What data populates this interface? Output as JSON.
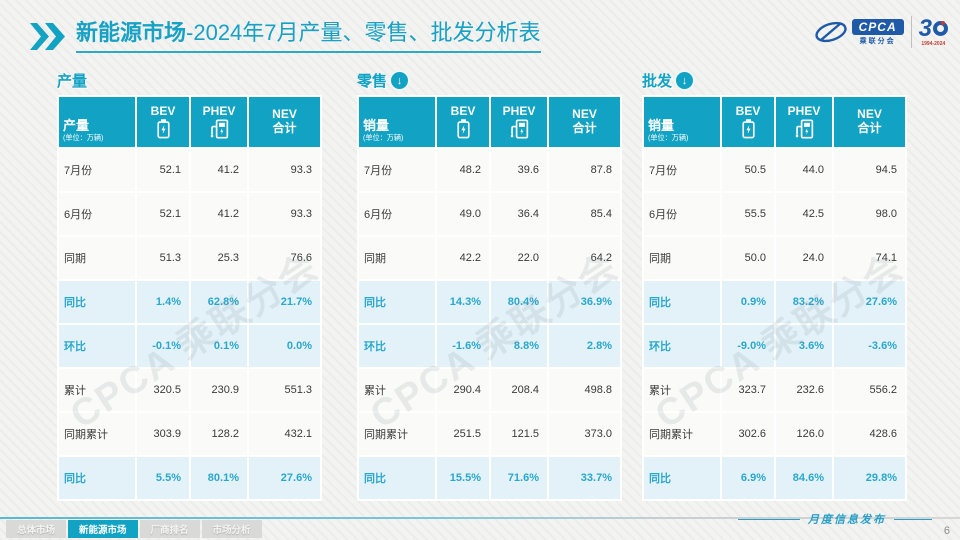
{
  "header": {
    "title_main": "新能源市场",
    "title_rest": "-2024年7月产量、零售、批发分析表"
  },
  "logo": {
    "cpca": "CPCA",
    "cpca_sub": "乘联分会",
    "anniversary_digit": "3",
    "anniversary_years": "1994-2024"
  },
  "icons": {
    "down_arrow": "↓"
  },
  "watermark_text": "CPCA 乘联分会",
  "colors": {
    "accent_teal": "#12a3c4",
    "highlight_bg": "#e3f2f9",
    "highlight_text": "#29a7cc",
    "logo_blue": "#1e5aa8",
    "logo_red": "#c43b2f"
  },
  "tables": [
    {
      "section_title": "产量",
      "has_arrow": false,
      "label_header": "产量",
      "unit": "(单位：万辆)",
      "col_bev": "BEV",
      "col_phev": "PHEV",
      "col_nev_1": "NEV",
      "col_nev_2": "合计",
      "rows": [
        {
          "label": "7月份",
          "values": [
            "52.1",
            "41.2",
            "93.3"
          ],
          "highlight": false
        },
        {
          "label": "6月份",
          "values": [
            "52.1",
            "41.2",
            "93.3"
          ],
          "highlight": false
        },
        {
          "label": "同期",
          "values": [
            "51.3",
            "25.3",
            "76.6"
          ],
          "highlight": false
        },
        {
          "label": "同比",
          "values": [
            "1.4%",
            "62.8%",
            "21.7%"
          ],
          "highlight": true
        },
        {
          "label": "环比",
          "values": [
            "-0.1%",
            "0.1%",
            "0.0%"
          ],
          "highlight": true
        },
        {
          "label": "累计",
          "values": [
            "320.5",
            "230.9",
            "551.3"
          ],
          "highlight": false
        },
        {
          "label": "同期累计",
          "values": [
            "303.9",
            "128.2",
            "432.1"
          ],
          "highlight": false
        },
        {
          "label": "同比",
          "values": [
            "5.5%",
            "80.1%",
            "27.6%"
          ],
          "highlight": true
        }
      ]
    },
    {
      "section_title": "零售",
      "has_arrow": true,
      "label_header": "销量",
      "unit": "(单位：万辆)",
      "col_bev": "BEV",
      "col_phev": "PHEV",
      "col_nev_1": "NEV",
      "col_nev_2": "合计",
      "rows": [
        {
          "label": "7月份",
          "values": [
            "48.2",
            "39.6",
            "87.8"
          ],
          "highlight": false
        },
        {
          "label": "6月份",
          "values": [
            "49.0",
            "36.4",
            "85.4"
          ],
          "highlight": false
        },
        {
          "label": "同期",
          "values": [
            "42.2",
            "22.0",
            "64.2"
          ],
          "highlight": false
        },
        {
          "label": "同比",
          "values": [
            "14.3%",
            "80.4%",
            "36.9%"
          ],
          "highlight": true
        },
        {
          "label": "环比",
          "values": [
            "-1.6%",
            "8.8%",
            "2.8%"
          ],
          "highlight": true
        },
        {
          "label": "累计",
          "values": [
            "290.4",
            "208.4",
            "498.8"
          ],
          "highlight": false
        },
        {
          "label": "同期累计",
          "values": [
            "251.5",
            "121.5",
            "373.0"
          ],
          "highlight": false
        },
        {
          "label": "同比",
          "values": [
            "15.5%",
            "71.6%",
            "33.7%"
          ],
          "highlight": true
        }
      ]
    },
    {
      "section_title": "批发",
      "has_arrow": true,
      "label_header": "销量",
      "unit": "(单位：万辆)",
      "col_bev": "BEV",
      "col_phev": "PHEV",
      "col_nev_1": "NEV",
      "col_nev_2": "合计",
      "rows": [
        {
          "label": "7月份",
          "values": [
            "50.5",
            "44.0",
            "94.5"
          ],
          "highlight": false
        },
        {
          "label": "6月份",
          "values": [
            "55.5",
            "42.5",
            "98.0"
          ],
          "highlight": false
        },
        {
          "label": "同期",
          "values": [
            "50.0",
            "24.0",
            "74.1"
          ],
          "highlight": false
        },
        {
          "label": "同比",
          "values": [
            "0.9%",
            "83.2%",
            "27.6%"
          ],
          "highlight": true
        },
        {
          "label": "环比",
          "values": [
            "-9.0%",
            "3.6%",
            "-3.6%"
          ],
          "highlight": true
        },
        {
          "label": "累计",
          "values": [
            "323.7",
            "232.6",
            "556.2"
          ],
          "highlight": false
        },
        {
          "label": "同期累计",
          "values": [
            "302.6",
            "126.0",
            "428.6"
          ],
          "highlight": false
        },
        {
          "label": "同比",
          "values": [
            "6.9%",
            "84.6%",
            "29.8%"
          ],
          "highlight": true
        }
      ]
    }
  ],
  "footer": {
    "tabs": [
      {
        "label": "总体市场",
        "active": false
      },
      {
        "label": "新能源市场",
        "active": true
      },
      {
        "label": "厂商排名",
        "active": false
      },
      {
        "label": "市场分析",
        "active": false
      }
    ],
    "publish_label": "月度信息发布",
    "page_number": "6"
  }
}
